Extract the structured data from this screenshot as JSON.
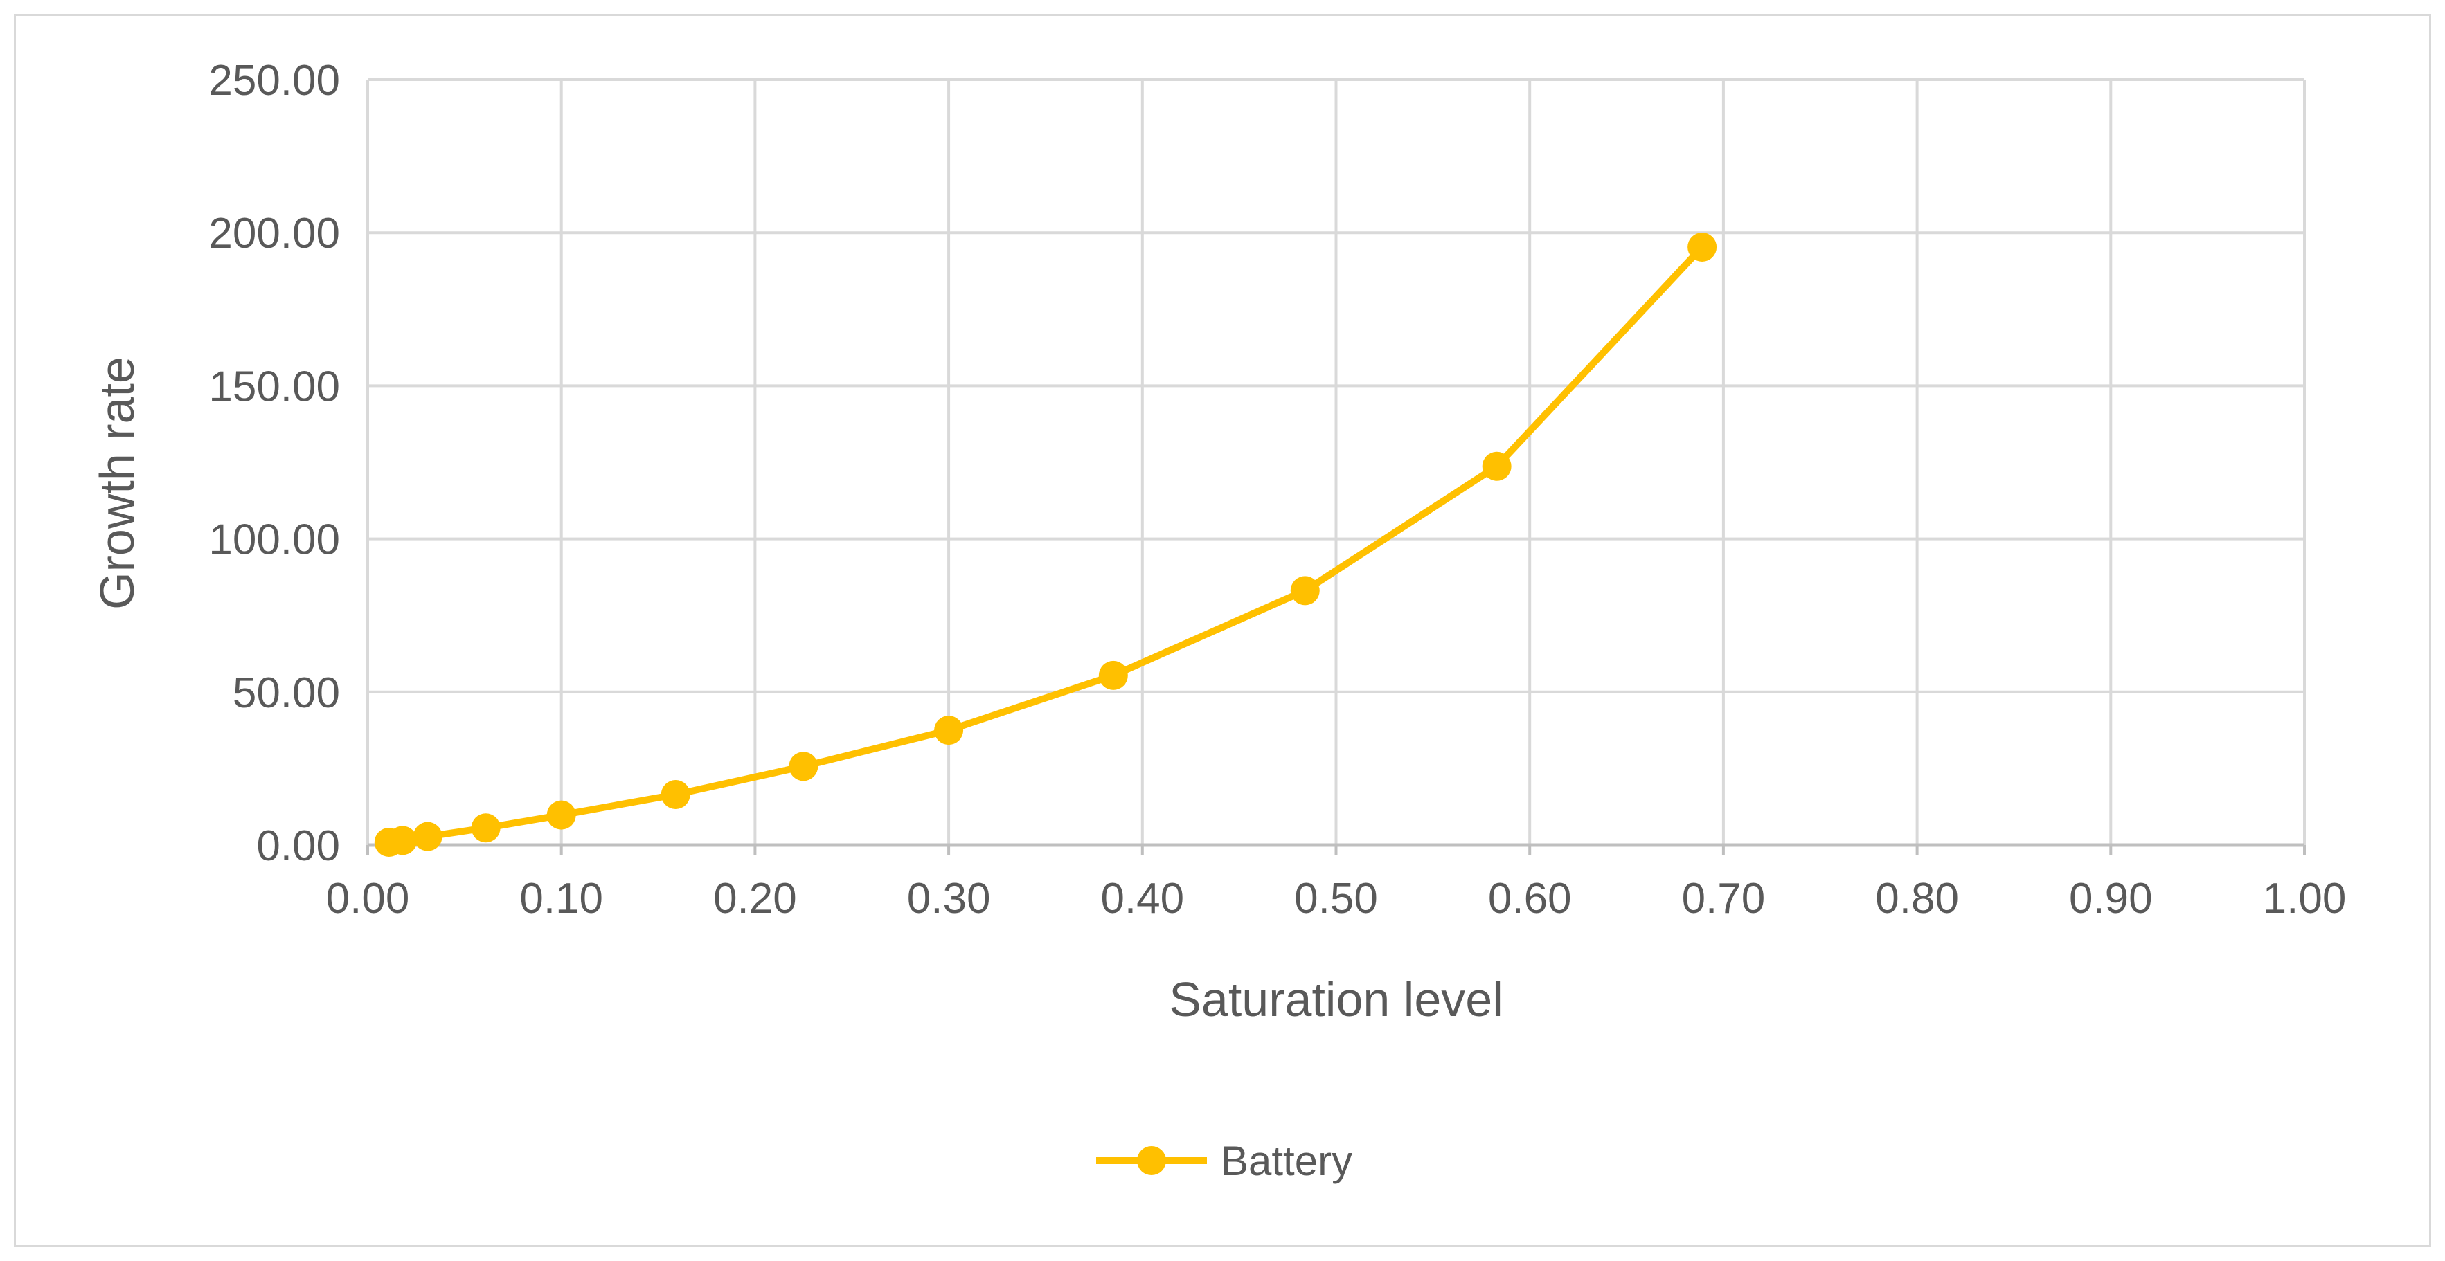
{
  "chart_data": {
    "type": "line",
    "title": "",
    "xlabel": "Saturation level",
    "ylabel": "Growth rate",
    "xlim": [
      0,
      1
    ],
    "ylim": [
      0,
      250
    ],
    "x_ticks": [
      0,
      0.1,
      0.2,
      0.3,
      0.4,
      0.5,
      0.6,
      0.7,
      0.8,
      0.9,
      1.0
    ],
    "x_tick_labels": [
      "0.00",
      "0.10",
      "0.20",
      "0.30",
      "0.40",
      "0.50",
      "0.60",
      "0.70",
      "0.80",
      "0.90",
      "1.00"
    ],
    "y_ticks": [
      0,
      50,
      100,
      150,
      200,
      250
    ],
    "y_tick_labels": [
      "0.00",
      "50.00",
      "100.00",
      "150.00",
      "200.00",
      "250.00"
    ],
    "grid": true,
    "legend_position": "bottom",
    "series": [
      {
        "name": "Battery",
        "color": "#ffc000",
        "marker": "circle",
        "x": [
          0.011,
          0.018,
          0.031,
          0.061,
          0.1,
          0.159,
          0.225,
          0.3,
          0.385,
          0.484,
          0.583,
          0.689
        ],
        "y": [
          0.9,
          1.5,
          2.8,
          5.6,
          9.8,
          16.5,
          25.7,
          37.5,
          55.4,
          83.1,
          123.7,
          195.3
        ]
      }
    ]
  }
}
